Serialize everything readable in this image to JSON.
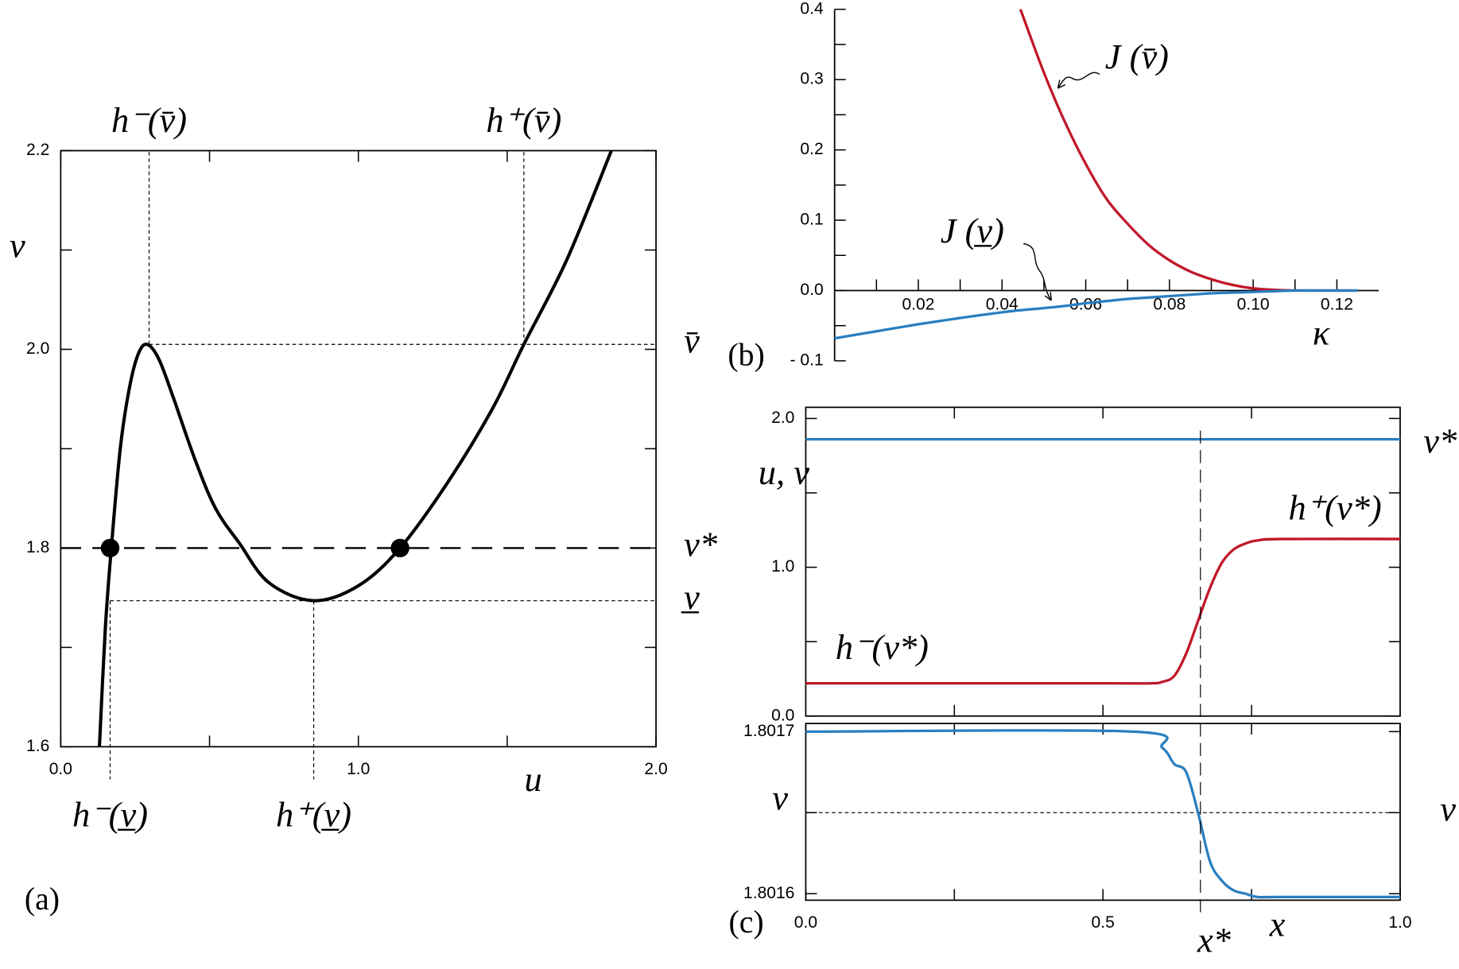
{
  "chart_data": [
    {
      "type": "line",
      "panel_label": "(a)",
      "x_label": "u",
      "y_label": "v",
      "xlim": [
        0,
        2
      ],
      "ylim": [
        1.6,
        2.2
      ],
      "xticks": [
        {
          "value": 0,
          "label": "0.0"
        },
        {
          "value": 1,
          "label": "1.0"
        },
        {
          "value": 2,
          "label": "2.0"
        }
      ],
      "minor_xticks": [
        0.5,
        1.5
      ],
      "yticks": [
        1.6,
        1.8,
        {
          "value": 2,
          "label": "2.0"
        },
        2.2
      ],
      "minor_yticks": [
        1.7,
        1.9,
        2.1
      ],
      "x": [
        0.13,
        0.15,
        0.17,
        0.2,
        0.23,
        0.26,
        0.29,
        0.33,
        0.38,
        0.45,
        0.52,
        0.6,
        0.7,
        0.85,
        1.0,
        1.14,
        1.3,
        1.45,
        1.556,
        1.7,
        1.85
      ],
      "series": [
        {
          "color": "#000000",
          "values": [
            1.6,
            1.72,
            1.8,
            1.9,
            1.96,
            1.995,
            2.005,
            1.99,
            1.95,
            1.89,
            1.84,
            1.805,
            1.765,
            1.747,
            1.762,
            1.8,
            1.866,
            1.94,
            2.005,
            2.09,
            2.2
          ]
        }
      ],
      "markers": {
        "x": [
          0.166,
          1.14
        ],
        "y": [
          1.8,
          1.8
        ]
      },
      "levels": [
        {
          "label": "v̄",
          "value": 2.005,
          "style": "dotted"
        },
        {
          "label": "v*",
          "value": 1.8,
          "style": "dashed"
        },
        {
          "label": "v̲",
          "value": 1.747,
          "style": "dotted"
        }
      ],
      "guides": [
        {
          "label": "h⁻(v̄)",
          "x": 0.297,
          "y": 2.005,
          "side": "top"
        },
        {
          "label": "h⁺(v̄)",
          "x": 1.556,
          "y": 2.005,
          "side": "top"
        },
        {
          "label": "h⁻(v̲)",
          "x": 0.166,
          "y": 1.747,
          "side": "bottom"
        },
        {
          "label": "h⁺(v̲)",
          "x": 0.85,
          "y": 1.747,
          "side": "bottom"
        }
      ]
    },
    {
      "type": "line",
      "panel_label": "(b)",
      "x_label": "κ",
      "xlim": [
        0,
        0.13
      ],
      "ylim": [
        -0.1,
        0.4
      ],
      "xticks": [
        0.02,
        0.04,
        0.06,
        0.08,
        {
          "value": 0.1,
          "label": "0.10"
        },
        0.12
      ],
      "minor_xticks": [
        0.01,
        0.03,
        0.05,
        0.07,
        0.09,
        0.11
      ],
      "yticks": [
        {
          "value": -0.1,
          "label": "- 0.1"
        },
        {
          "value": 0,
          "label": "0.0"
        },
        0.1,
        0.2,
        0.3,
        0.4
      ],
      "minor_yticks": [
        -0.05,
        0.05,
        0.15,
        0.25,
        0.35
      ],
      "x": [
        0,
        0.01,
        0.02,
        0.03,
        0.04,
        0.0444,
        0.05,
        0.055,
        0.06,
        0.065,
        0.07,
        0.075,
        0.08,
        0.085,
        0.09,
        0.095,
        0.1,
        0.105,
        0.11,
        0.115,
        0.12,
        0.125
      ],
      "series": [
        {
          "color": "#c0182a",
          "values": [
            null,
            null,
            null,
            null,
            null,
            0.4,
            0.31,
            0.24,
            0.18,
            0.13,
            0.095,
            0.065,
            0.043,
            0.027,
            0.016,
            0.008,
            0.003,
            0.001,
            0,
            0,
            0,
            0
          ]
        },
        {
          "color": "#2a7fc0",
          "values": [
            -0.068,
            -0.058,
            -0.048,
            -0.039,
            -0.031,
            -0.028,
            -0.025,
            -0.022,
            -0.018,
            -0.015,
            -0.012,
            -0.01,
            -0.008,
            -0.006,
            -0.004,
            -0.003,
            -0.002,
            -0.001,
            0,
            0,
            0,
            0
          ]
        }
      ],
      "annotations": [
        "J (v̄)",
        "J (v̲)"
      ]
    },
    {
      "type": "line",
      "y_label": "u, v",
      "xlim": [
        0,
        1
      ],
      "ylim": [
        0,
        2.075
      ],
      "minor_xticks": [
        0.25,
        0.5,
        0.75
      ],
      "yticks": [
        {
          "value": 0,
          "label": "0.0"
        },
        {
          "value": 1,
          "label": "1.0"
        },
        {
          "value": 2,
          "label": "2.0"
        }
      ],
      "minor_yticks": [
        0.5,
        1.5
      ],
      "x": [
        0,
        0.5,
        0.58,
        0.6,
        0.62,
        0.64,
        0.66,
        0.68,
        0.7,
        0.72,
        0.74,
        0.76,
        0.8,
        1.0
      ],
      "series": [
        {
          "color": "#2a7fc0",
          "values": [
            1.86,
            1.86,
            1.86,
            1.86,
            1.86,
            1.86,
            1.86,
            1.86,
            1.86,
            1.86,
            1.86,
            1.86,
            1.86,
            1.86
          ]
        },
        {
          "color": "#c0182a",
          "values": [
            0.22,
            0.22,
            0.22,
            0.23,
            0.27,
            0.42,
            0.64,
            0.86,
            1.03,
            1.12,
            1.16,
            1.18,
            1.19,
            1.19
          ]
        }
      ],
      "annotations": [
        "v*",
        "h⁻(v*)",
        "h⁺(v*)"
      ]
    },
    {
      "type": "line",
      "panel_label": "(c)",
      "x_label": "x",
      "y_label": "v",
      "xlim": [
        0,
        1
      ],
      "ylim": [
        1.801596,
        1.801705
      ],
      "xticks": [
        {
          "value": 0,
          "label": "0.0"
        },
        0.5,
        {
          "value": 1,
          "label": "1.0"
        }
      ],
      "minor_xticks": [
        0.25,
        0.75
      ],
      "yticks": [
        1.8016,
        1.8017
      ],
      "minor_yticks": [
        1.80165
      ],
      "x": [
        0,
        0.55,
        0.6,
        0.62,
        0.64,
        0.66,
        0.68,
        0.7,
        0.72,
        0.74,
        0.76,
        0.8,
        1.0
      ],
      "series": [
        {
          "color": "#2a7fc0",
          "values": [
            1.8017,
            1.8017,
            1.80169,
            1.80168,
            1.801675,
            1.80165,
            1.80162,
            1.801608,
            1.801602,
            1.8016,
            1.801598,
            1.801598,
            1.801598
          ]
        }
      ],
      "levels": [
        {
          "label": "v*",
          "value": 1.80165,
          "style": "dotted"
        }
      ],
      "x_marker": {
        "label": "x*",
        "value": 0.664
      }
    }
  ]
}
